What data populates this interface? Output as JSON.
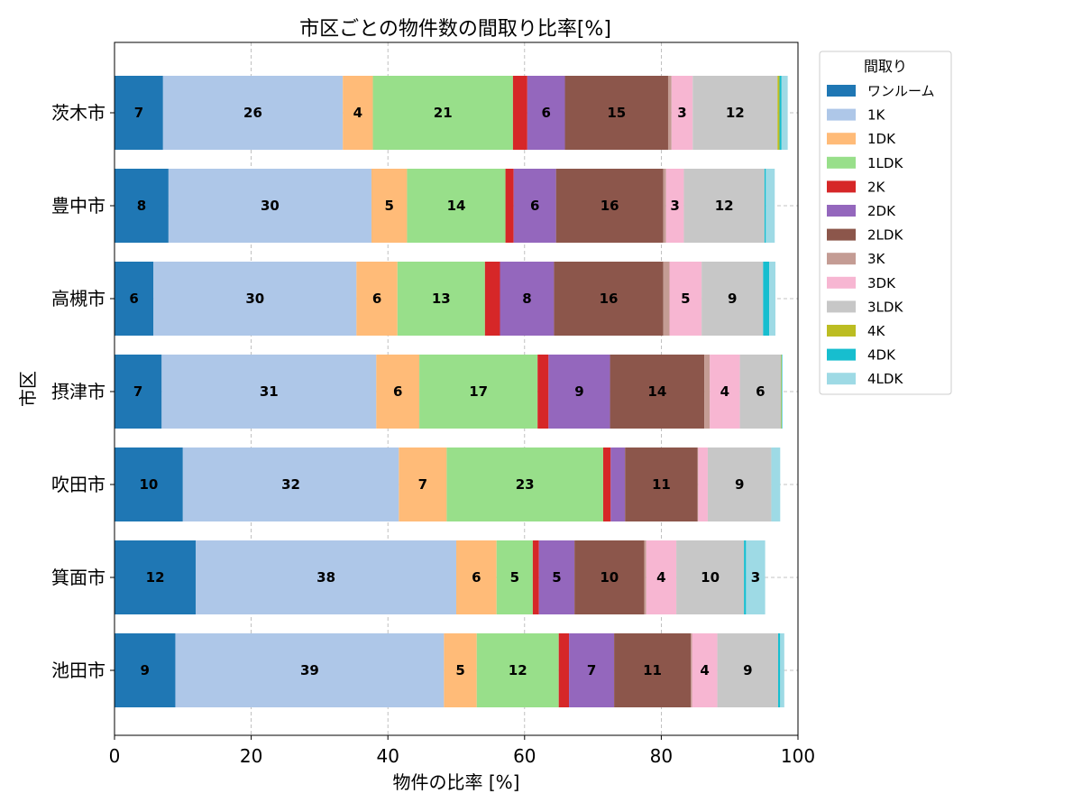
{
  "chart_data": {
    "type": "bar",
    "orientation": "horizontal",
    "stacked": true,
    "title": "市区ごとの物件数の間取り比率[%]",
    "xlabel": "物件の比率 [%]",
    "ylabel": "市区",
    "xlim": [
      0,
      100
    ],
    "xticks": [
      "0",
      "20",
      "40",
      "60",
      "80",
      "100"
    ],
    "grid": true,
    "legend_title": "間取り",
    "legend_position": "outside-top-right",
    "categories": [
      "茨木市",
      "豊中市",
      "高槻市",
      "摂津市",
      "吹田市",
      "箕面市",
      "池田市"
    ],
    "series": [
      {
        "name": "ワンルーム",
        "color": "#1f77b4",
        "values": [
          7.1,
          7.9,
          5.7,
          6.9,
          10.0,
          11.9,
          8.9
        ]
      },
      {
        "name": "1K",
        "color": "#aec7e8",
        "values": [
          26.3,
          29.7,
          29.7,
          31.4,
          31.6,
          38.1,
          39.3
        ]
      },
      {
        "name": "1DK",
        "color": "#ffbb78",
        "values": [
          4.4,
          5.2,
          6.0,
          6.3,
          7.0,
          5.9,
          4.8
        ]
      },
      {
        "name": "1LDK",
        "color": "#98df8a",
        "values": [
          20.5,
          14.4,
          12.8,
          17.3,
          22.9,
          5.3,
          12.0
        ]
      },
      {
        "name": "2K",
        "color": "#d62728",
        "values": [
          2.1,
          1.2,
          2.2,
          1.6,
          1.1,
          0.9,
          1.5
        ]
      },
      {
        "name": "2DK",
        "color": "#9467bd",
        "values": [
          5.5,
          6.2,
          7.9,
          9.0,
          2.1,
          5.2,
          6.6
        ]
      },
      {
        "name": "2LDK",
        "color": "#8c564b",
        "values": [
          15.1,
          15.7,
          16.0,
          13.8,
          10.6,
          10.2,
          11.2
        ]
      },
      {
        "name": "3K",
        "color": "#c49c94",
        "values": [
          0.5,
          0.4,
          0.9,
          0.8,
          0.1,
          0.3,
          0.2
        ]
      },
      {
        "name": "3DK",
        "color": "#f7b6d2",
        "values": [
          3.1,
          2.6,
          4.7,
          4.4,
          1.4,
          4.4,
          3.7
        ]
      },
      {
        "name": "3LDK",
        "color": "#c7c7c7",
        "values": [
          12.4,
          11.8,
          9.0,
          6.0,
          9.3,
          9.9,
          8.9
        ]
      },
      {
        "name": "4K",
        "color": "#bcbd22",
        "values": [
          0.3,
          0.0,
          0.0,
          0.1,
          0.0,
          0.0,
          0.0
        ]
      },
      {
        "name": "4DK",
        "color": "#17becf",
        "values": [
          0.3,
          0.2,
          0.9,
          0.1,
          0.0,
          0.3,
          0.3
        ]
      },
      {
        "name": "4LDK",
        "color": "#9edae5",
        "values": [
          0.9,
          1.3,
          0.9,
          0.0,
          1.3,
          2.8,
          0.6
        ]
      }
    ],
    "bar_label_min": 2.5
  }
}
